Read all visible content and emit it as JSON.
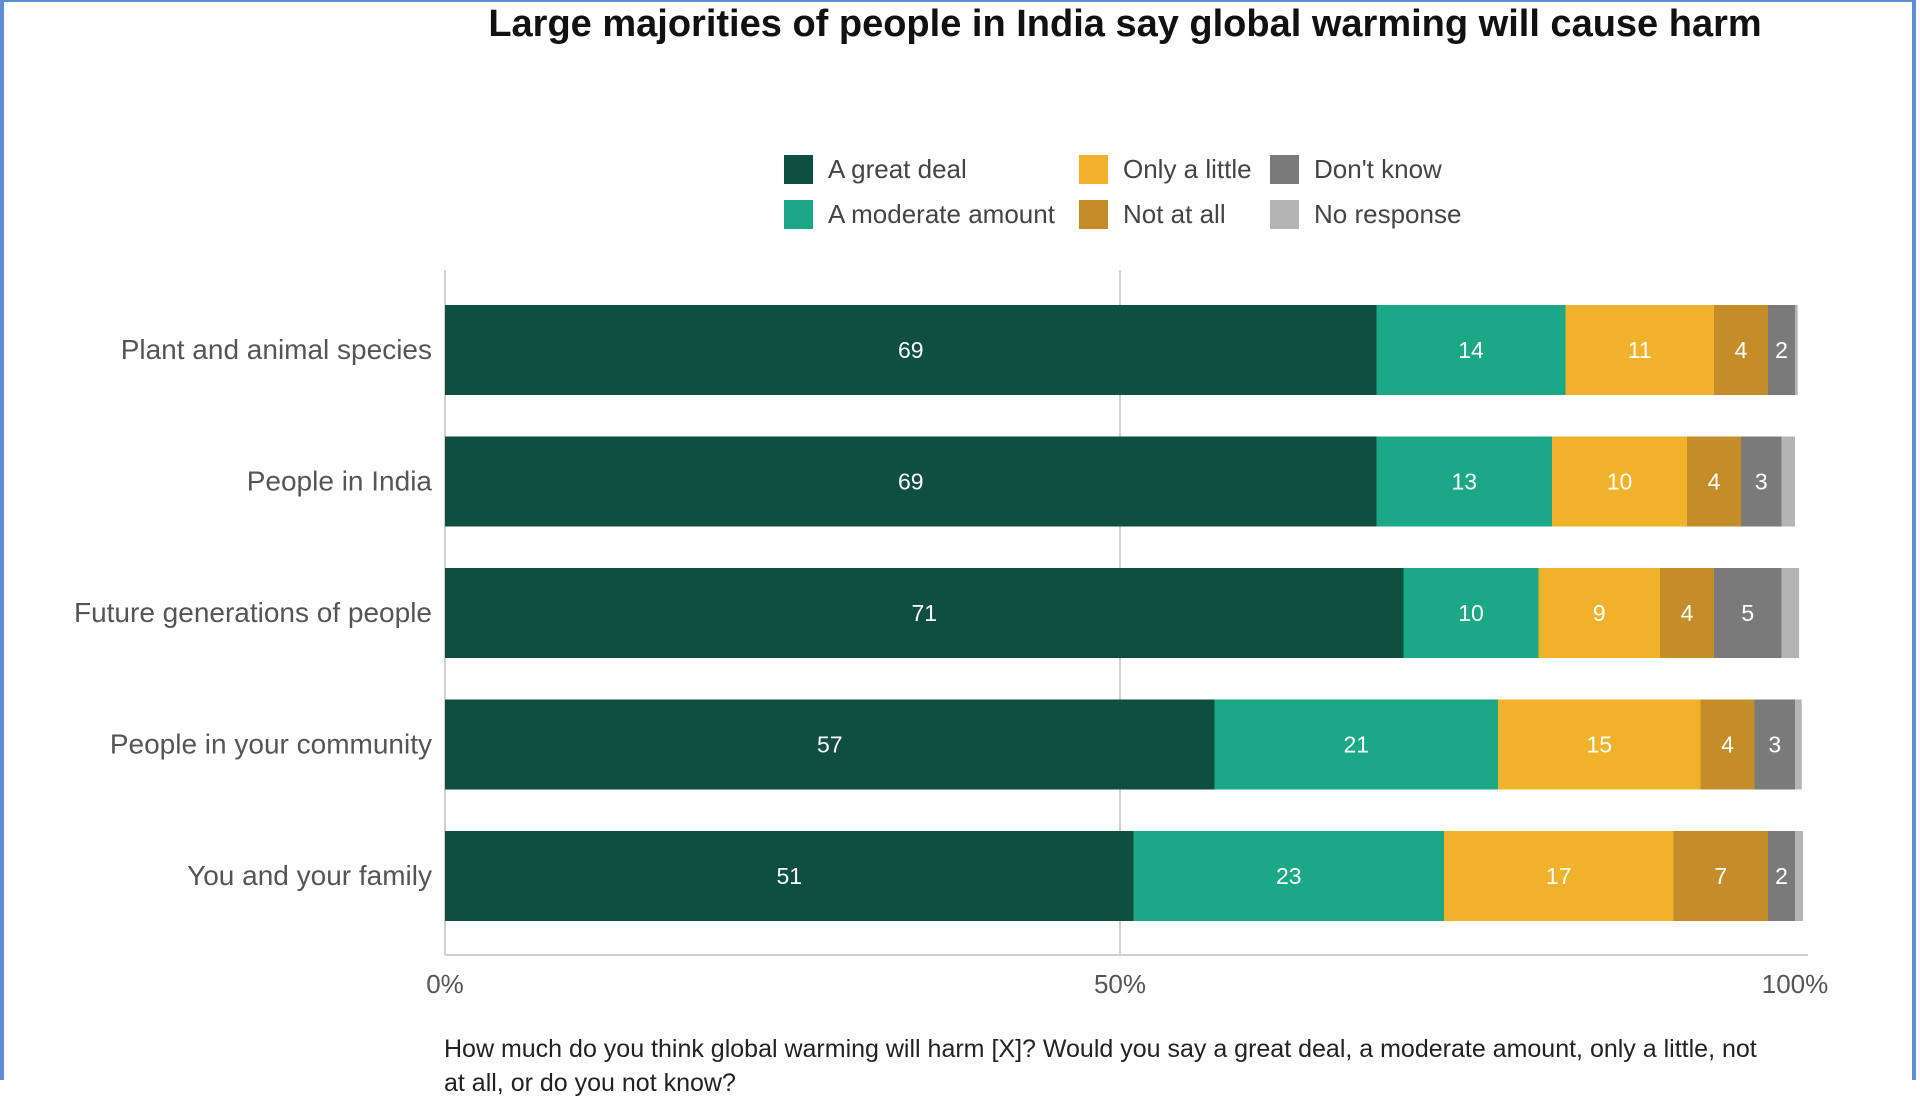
{
  "chart_data": {
    "type": "bar",
    "orientation": "horizontal",
    "stacked": true,
    "title": "Large majorities of people in India say global warming will cause harm",
    "categories": [
      "Plant and animal species",
      "People in India",
      "Future generations of people",
      "People in your community",
      "You and your family"
    ],
    "series": [
      {
        "name": "A great deal",
        "color": "#0e4f40",
        "values": [
          69,
          69,
          71,
          57,
          51
        ],
        "labels": [
          "69",
          "69",
          "71",
          "57",
          "51"
        ]
      },
      {
        "name": "A moderate amount",
        "color": "#1ba886",
        "values": [
          14,
          13,
          10,
          21,
          23
        ],
        "labels": [
          "14",
          "13",
          "10",
          "21",
          "23"
        ]
      },
      {
        "name": "Only a little",
        "color": "#f0b12b",
        "values": [
          11,
          10,
          9,
          15,
          17
        ],
        "labels": [
          "11",
          "10",
          "9",
          "15",
          "17"
        ]
      },
      {
        "name": "Not at all",
        "color": "#c48d2a",
        "values": [
          4,
          4,
          4,
          4,
          7
        ],
        "labels": [
          "4",
          "4",
          "4",
          "4",
          "7"
        ]
      },
      {
        "name": "Don't know",
        "color": "#7a7a7a",
        "values": [
          2,
          3,
          5,
          3,
          2
        ],
        "labels": [
          "2",
          "3",
          "5",
          "3",
          "2"
        ]
      },
      {
        "name": "No response",
        "color": "#b4b4b4",
        "values": [
          0.2,
          1,
          1.3,
          0.5,
          0.6
        ],
        "labels": [
          "",
          "",
          "",
          "",
          ""
        ]
      }
    ],
    "xlim": [
      0,
      100
    ],
    "xticks": [
      "0%",
      "50%",
      "100%"
    ],
    "legend_position": "top",
    "xlabel": "",
    "ylabel": ""
  },
  "question": "How much do you think global warming will harm [X]? Would you say a great deal, a moderate amount, only a little, not at all, or do you not know?"
}
